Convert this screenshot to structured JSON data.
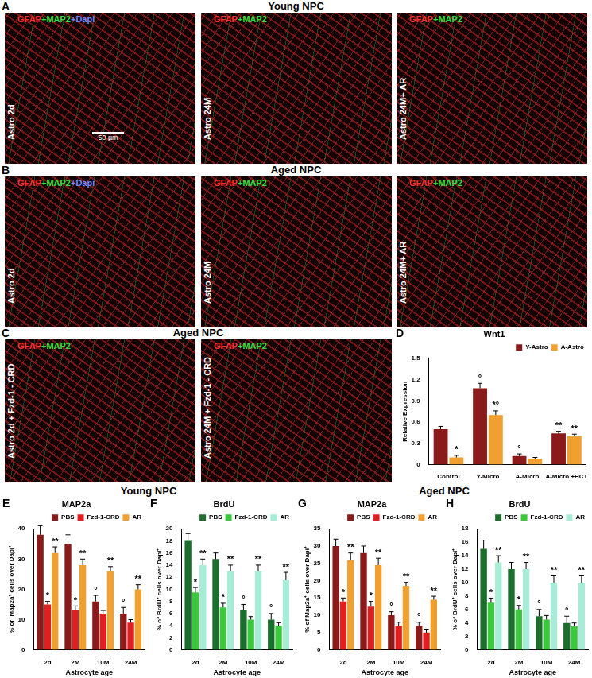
{
  "image_rows": [
    {
      "letter": "A",
      "header": "Young NPC",
      "images": [
        {
          "label": "Astro 2d",
          "stain": [
            {
              "text": "GFAP",
              "color": "#ff3030"
            },
            {
              "text": "+MAP2",
              "color": "#30e040"
            },
            {
              "text": "+Dapi",
              "color": "#6a8cff"
            }
          ],
          "scale_bar": "50 µm"
        },
        {
          "label": "Astro 24M",
          "stain": [
            {
              "text": "GFAP",
              "color": "#ff3030"
            },
            {
              "text": "+MAP2",
              "color": "#30e040"
            }
          ]
        },
        {
          "label": "Astro 24M+ AR",
          "stain": [
            {
              "text": "GFAP",
              "color": "#ff3030"
            },
            {
              "text": "+MAP2",
              "color": "#30e040"
            }
          ]
        }
      ]
    },
    {
      "letter": "B",
      "header": "Aged  NPC",
      "images": [
        {
          "label": "Astro 2d",
          "stain": [
            {
              "text": "GFAP",
              "color": "#ff3030"
            },
            {
              "text": "+MAP2",
              "color": "#30e040"
            },
            {
              "text": "+Dapi",
              "color": "#6a8cff"
            }
          ]
        },
        {
          "label": "Astro 24M",
          "stain": [
            {
              "text": "GFAP",
              "color": "#ff3030"
            },
            {
              "text": "+MAP2",
              "color": "#30e040"
            }
          ]
        },
        {
          "label": "Astro 24M+ AR",
          "stain": [
            {
              "text": "GFAP",
              "color": "#ff3030"
            },
            {
              "text": "+MAP2",
              "color": "#30e040"
            }
          ]
        }
      ]
    },
    {
      "letter": "C",
      "header": "Aged NPC",
      "images": [
        {
          "label": "Astro 2d + Fzd-1 - CRD",
          "stain": [
            {
              "text": "GFAP",
              "color": "#ff3030"
            },
            {
              "text": "+MAP2",
              "color": "#30e040"
            }
          ]
        },
        {
          "label": "Astro 24M + Fzd-1 - CRD",
          "stain": [
            {
              "text": "GFAP",
              "color": "#ff3030"
            },
            {
              "text": "+MAP2",
              "color": "#30e040"
            }
          ]
        }
      ]
    }
  ],
  "chart_groups": [
    {
      "header": "Young NPC",
      "panels": [
        "E",
        "F"
      ]
    },
    {
      "header": "Aged NPC",
      "panels": [
        "G",
        "H"
      ]
    }
  ],
  "chart_data": [
    {
      "panel": "D",
      "type": "bar",
      "title": "Wnt1",
      "ylabel": "Relative Expression",
      "categories": [
        "Control",
        "Y-Micro",
        "A-Micro",
        "A-Micro +HCT"
      ],
      "series": [
        {
          "name": "Y-Astro",
          "color": "#8b1a1a",
          "values": [
            0.5,
            1.08,
            0.12,
            0.44
          ],
          "errors": [
            0.04,
            0.07,
            0.03,
            0.03
          ],
          "annotations": [
            null,
            "°",
            "°",
            "**"
          ]
        },
        {
          "name": "A-Astro",
          "color": "#f0a030",
          "values": [
            0.1,
            0.7,
            0.08,
            0.4
          ],
          "errors": [
            0.03,
            0.06,
            0.02,
            0.03
          ],
          "annotations": [
            "*",
            "*°",
            null,
            "**"
          ]
        }
      ],
      "ylim": [
        0,
        1.5
      ],
      "yticks": [
        0,
        0.3,
        0.6,
        0.9,
        1.2,
        1.5
      ],
      "legend": "top"
    },
    {
      "panel": "E",
      "type": "bar",
      "title": "MAP2a",
      "ylabel": "% of  Map2a⁺ cells over Dapi⁺",
      "xlabel": "Astrocyte age",
      "categories": [
        "2d",
        "2M",
        "10M",
        "24M"
      ],
      "series": [
        {
          "name": "PBS",
          "color": "#8b1a1a",
          "values": [
            38,
            35,
            16,
            12
          ],
          "errors": [
            3,
            3,
            2,
            2
          ],
          "annotations": [
            null,
            null,
            "°",
            "°"
          ]
        },
        {
          "name": "Fzd-1-CRD",
          "color": "#e02020",
          "values": [
            15,
            13,
            12,
            9
          ],
          "errors": [
            1,
            1.5,
            1,
            1
          ],
          "annotations": [
            "*",
            "*",
            null,
            null
          ]
        },
        {
          "name": "AR",
          "color": "#f0a030",
          "values": [
            32,
            28,
            26,
            20
          ],
          "errors": [
            2,
            2,
            1.5,
            1.5
          ],
          "annotations": [
            "**",
            "**",
            "**",
            "**"
          ]
        }
      ],
      "ylim": [
        0,
        40
      ],
      "yticks": [
        0,
        10,
        20,
        30,
        40
      ],
      "legend": "top"
    },
    {
      "panel": "F",
      "type": "bar",
      "title": "BrdU",
      "ylabel": "% of BrdU⁺ cells over Dapi⁺",
      "xlabel": "Astrocyte age",
      "categories": [
        "2d",
        "2M",
        "10M",
        "24M"
      ],
      "series": [
        {
          "name": "PBS",
          "color": "#1b6e2b",
          "values": [
            18,
            15,
            6.5,
            5
          ],
          "errors": [
            1.2,
            1,
            1,
            1
          ],
          "annotations": [
            null,
            null,
            "°",
            "°"
          ]
        },
        {
          "name": "Fzd-1-CRD",
          "color": "#3cc83c",
          "values": [
            9.5,
            7,
            5,
            4
          ],
          "errors": [
            0.8,
            0.7,
            0.5,
            0.5
          ],
          "annotations": [
            "*",
            "*",
            null,
            null
          ]
        },
        {
          "name": "AR",
          "color": "#a8ecd8",
          "values": [
            14,
            13,
            13,
            11.5
          ],
          "errors": [
            1,
            1,
            1,
            1.3
          ],
          "annotations": [
            "**",
            "**",
            "**",
            "**"
          ]
        }
      ],
      "ylim": [
        0,
        20
      ],
      "yticks": [
        0,
        2,
        4,
        6,
        8,
        10,
        12,
        14,
        16,
        18,
        20
      ],
      "legend": "top"
    },
    {
      "panel": "G",
      "type": "bar",
      "title": "MAP2a",
      "ylabel": "% of Map2a⁺ cells over Dapi⁺",
      "xlabel": "Astrocyte age",
      "categories": [
        "2d",
        "2M",
        "10M",
        "24M"
      ],
      "series": [
        {
          "name": "PBS",
          "color": "#8b1a1a",
          "values": [
            30,
            28,
            10,
            7
          ],
          "errors": [
            2,
            2,
            1,
            1
          ],
          "annotations": [
            null,
            null,
            "°",
            "°"
          ]
        },
        {
          "name": "Fzd-1-CRD",
          "color": "#e02020",
          "values": [
            14,
            12.5,
            7,
            5
          ],
          "errors": [
            1,
            1.5,
            1,
            1
          ],
          "annotations": [
            "*",
            "*",
            null,
            null
          ]
        },
        {
          "name": "AR",
          "color": "#f0a030",
          "values": [
            26,
            24.5,
            18.5,
            14.5
          ],
          "errors": [
            2,
            2,
            1,
            1
          ],
          "annotations": [
            "**",
            "**",
            "**",
            "**"
          ]
        }
      ],
      "ylim": [
        0,
        35
      ],
      "yticks": [
        0,
        5,
        10,
        15,
        20,
        25,
        30,
        35
      ],
      "legend": "top"
    },
    {
      "panel": "H",
      "type": "bar",
      "title": "BrdU",
      "ylabel": "% of BrdU⁺ cells over Dapi⁺",
      "xlabel": "Astrocyte age",
      "categories": [
        "2d",
        "2M",
        "10M",
        "24M"
      ],
      "series": [
        {
          "name": "PBS",
          "color": "#1b6e2b",
          "values": [
            15,
            12,
            5,
            4
          ],
          "errors": [
            1.3,
            1,
            1,
            1
          ],
          "annotations": [
            null,
            null,
            "°",
            "°"
          ]
        },
        {
          "name": "Fzd-1-CRD",
          "color": "#3cc83c",
          "values": [
            7,
            6,
            4.5,
            3.5
          ],
          "errors": [
            0.7,
            0.6,
            0.6,
            0.5
          ],
          "annotations": [
            "*",
            "*",
            null,
            null
          ]
        },
        {
          "name": "AR",
          "color": "#a8ecd8",
          "values": [
            13,
            12,
            10,
            10
          ],
          "errors": [
            1,
            1,
            1,
            1
          ],
          "annotations": [
            "**",
            "**",
            "**",
            "**"
          ]
        }
      ],
      "ylim": [
        0,
        18
      ],
      "yticks": [
        0,
        2,
        4,
        6,
        8,
        10,
        12,
        14,
        16,
        18
      ],
      "legend": "top"
    }
  ]
}
